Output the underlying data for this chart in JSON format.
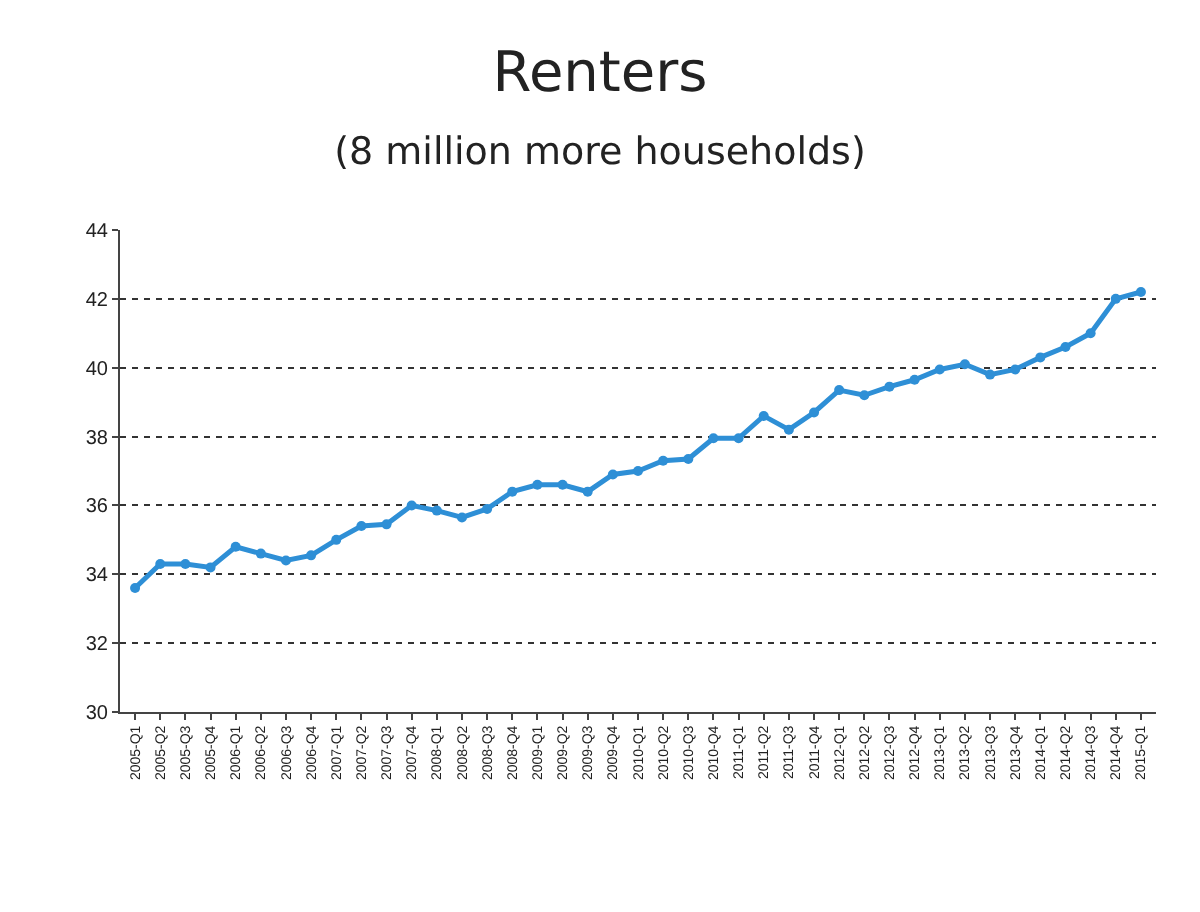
{
  "chart_data": {
    "type": "line",
    "title": "Renters",
    "subtitle": "(8 million more households)",
    "categories": [
      "2005-Q1",
      "2005-Q2",
      "2005-Q3",
      "2005-Q4",
      "2006-Q1",
      "2006-Q2",
      "2006-Q3",
      "2006-Q4",
      "2007-Q1",
      "2007-Q2",
      "2007-Q3",
      "2007-Q4",
      "2008-Q1",
      "2008-Q2",
      "2008-Q3",
      "2008-Q4",
      "2009-Q1",
      "2009-Q2",
      "2009-Q3",
      "2009-Q4",
      "2010-Q1",
      "2010-Q2",
      "2010-Q3",
      "2010-Q4",
      "2011-Q1",
      "2011-Q2",
      "2011-Q3",
      "2011-Q4",
      "2012-Q1",
      "2012-Q2",
      "2012-Q3",
      "2012-Q4",
      "2013-Q1",
      "2013-Q2",
      "2013-Q3",
      "2013-Q4",
      "2014-Q1",
      "2014-Q2",
      "2014-Q3",
      "2014-Q4",
      "2015-Q1"
    ],
    "series": [
      {
        "color": "#2e8fd6",
        "values": [
          33.6,
          34.3,
          34.3,
          34.2,
          34.8,
          34.6,
          34.4,
          34.55,
          35.0,
          35.4,
          35.45,
          36.0,
          35.85,
          35.65,
          35.9,
          36.4,
          36.6,
          36.6,
          36.4,
          36.9,
          37.0,
          37.3,
          37.35,
          37.95,
          37.95,
          38.6,
          38.2,
          38.7,
          39.35,
          39.2,
          39.45,
          39.65,
          39.95,
          40.1,
          39.8,
          39.95,
          40.3,
          40.6,
          41.0,
          42.0,
          42.2
        ]
      }
    ],
    "ylim": [
      30,
      44
    ],
    "yticks": [
      30,
      32,
      34,
      36,
      38,
      40,
      42,
      44
    ],
    "grid": "y",
    "marker": "circle",
    "line_style": "solid"
  }
}
